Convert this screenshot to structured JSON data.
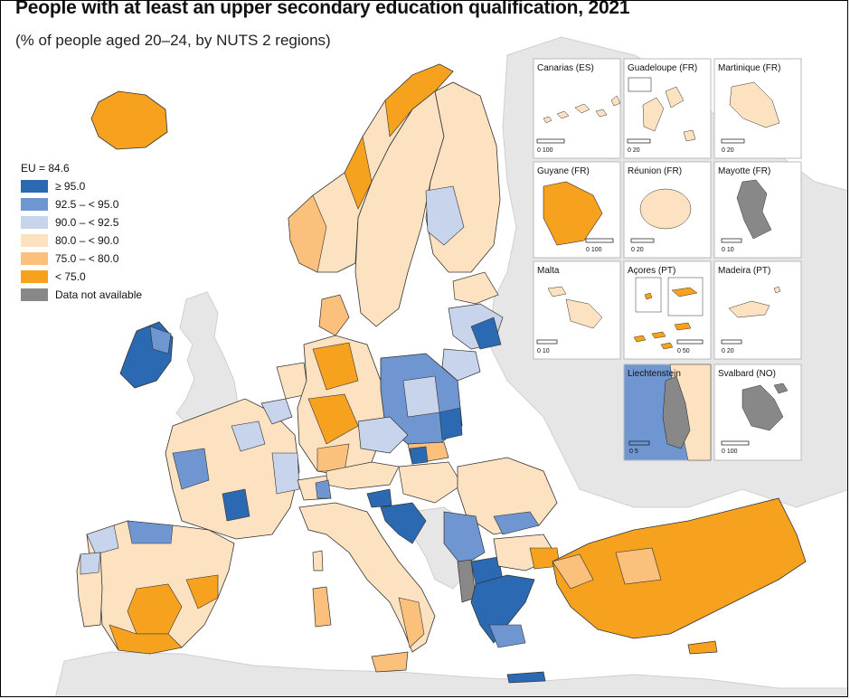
{
  "title": "People with at least an upper secondary education qualification, 2021",
  "subtitle": "(% of people aged 20–24, by NUTS 2 regions)",
  "legend": {
    "eu_label": "EU = 84.6",
    "items": [
      {
        "label": "≥ 95.0",
        "color": "#2b6ab3"
      },
      {
        "label": "92.5 – < 95.0",
        "color": "#6f96d0"
      },
      {
        "label": "90.0 – < 92.5",
        "color": "#c7d4ec"
      },
      {
        "label": "80.0 – < 90.0",
        "color": "#fce2c0"
      },
      {
        "label": "75.0 – < 80.0",
        "color": "#fbc07c"
      },
      {
        "label": "< 75.0",
        "color": "#f6a21e"
      },
      {
        "label": "Data not available",
        "color": "#888888"
      }
    ]
  },
  "colors": {
    "land_outside": "#e6e6e6",
    "sea": "#ffffff",
    "border": "#333333"
  },
  "insets": [
    {
      "name": "Canarias (ES)",
      "scale": "0 100"
    },
    {
      "name": "Guadeloupe (FR)",
      "scale": "0 20"
    },
    {
      "name": "Martinique (FR)",
      "scale": "0 20"
    },
    {
      "name": "Guyane (FR)",
      "scale": "0 100"
    },
    {
      "name": "Réunion (FR)",
      "scale": "0 20"
    },
    {
      "name": "Mayotte (FR)",
      "scale": "0 10"
    },
    {
      "name": "Malta",
      "scale": "0 10"
    },
    {
      "name": "Açores (PT)",
      "scale": "0 50"
    },
    {
      "name": "Madeira (PT)",
      "scale": "0 20"
    },
    {
      "name": "Liechtenstein",
      "scale": "0 5"
    },
    {
      "name": "Svalbard (NO)",
      "scale": "0 100"
    }
  ]
}
